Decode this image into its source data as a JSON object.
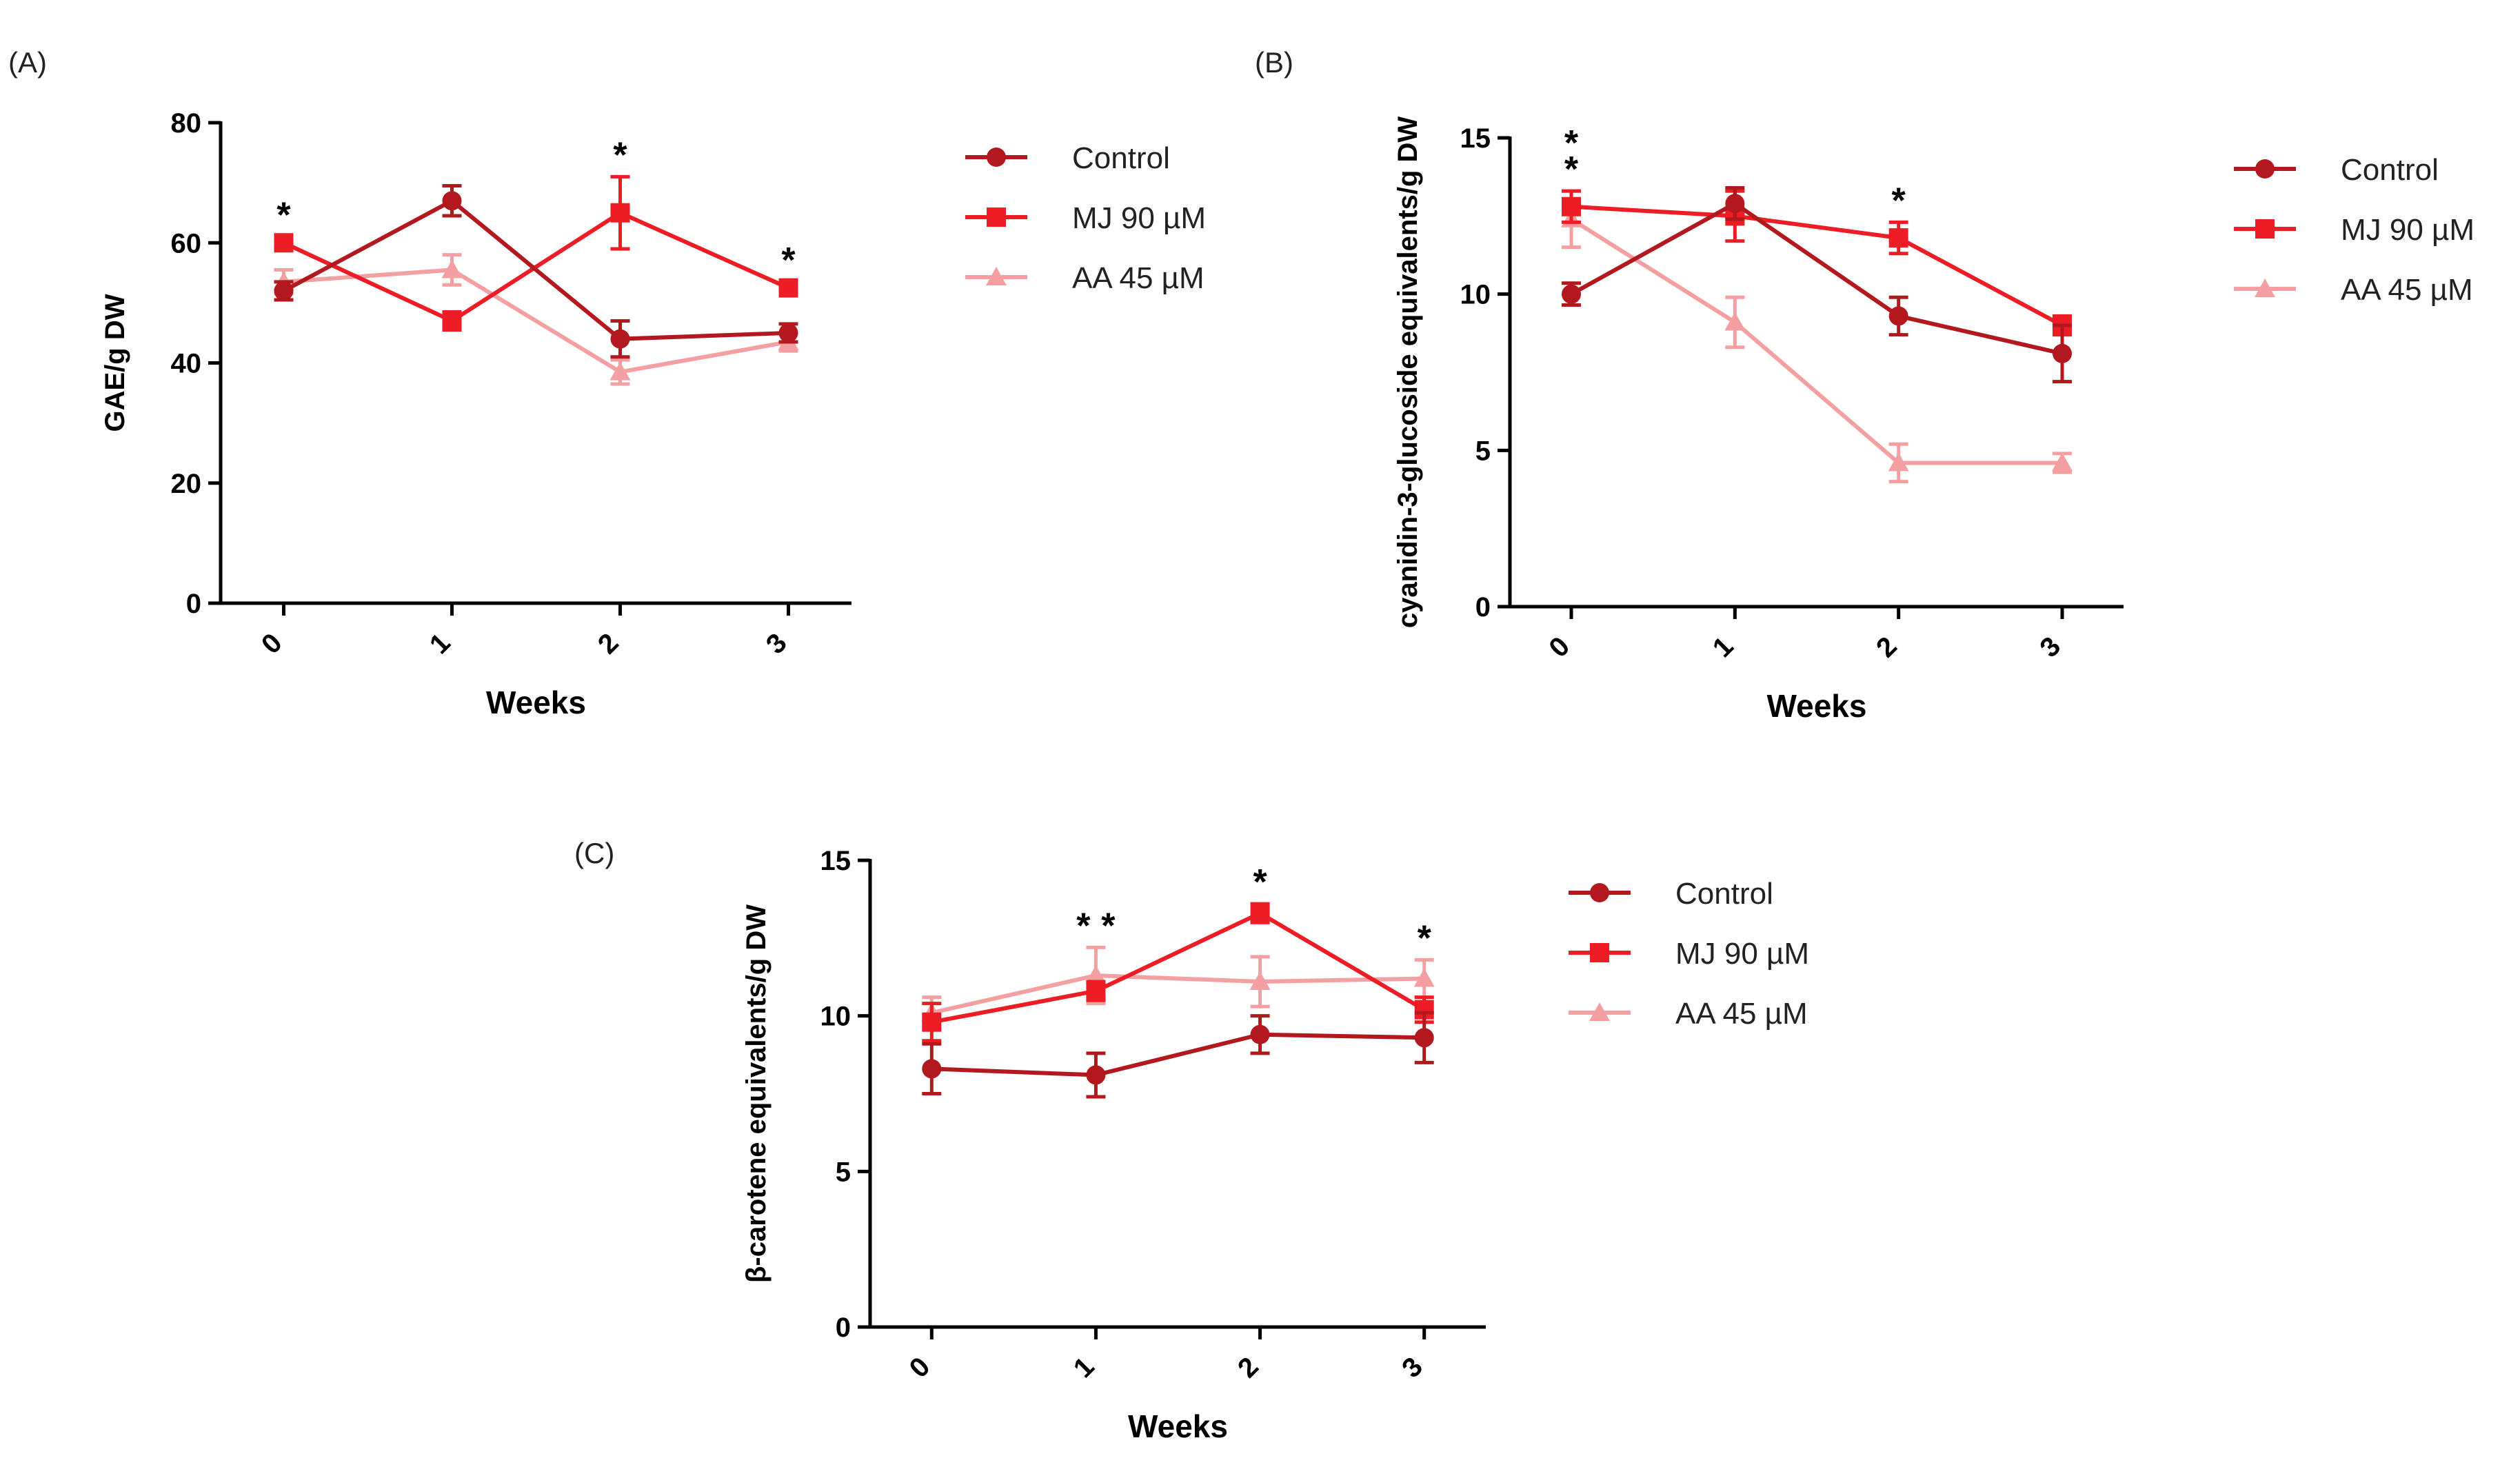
{
  "series_colors": {
    "Control": "#b3181f",
    "MJ 90 µM": "#ee1c24",
    "AA 45 µM": "#f4a0a3"
  },
  "chart_data": [
    {
      "panel_label": "(A)",
      "type": "line",
      "xlabel": "Weeks",
      "ylabel": "GAE/g DW",
      "x": [
        0,
        1,
        2,
        3
      ],
      "x_tick_labels": [
        "0",
        "1",
        "2",
        "3"
      ],
      "ylim": [
        0,
        80
      ],
      "y_ticks": [
        0,
        20,
        40,
        60,
        80
      ],
      "grid": false,
      "legend_placement": "right",
      "series": [
        {
          "name": "Control",
          "marker": "circle",
          "values": [
            52,
            67,
            44,
            45
          ],
          "errors": [
            1.5,
            2.5,
            3,
            1.5
          ]
        },
        {
          "name": "MJ 90 µM",
          "marker": "square",
          "values": [
            60,
            47,
            65,
            52.5
          ],
          "errors": [
            1,
            1.5,
            6,
            1
          ]
        },
        {
          "name": "AA 45 µM",
          "marker": "triangle",
          "values": [
            53.5,
            55.5,
            38.5,
            43.5
          ],
          "errors": [
            2,
            2.5,
            2,
            1.5
          ]
        }
      ],
      "annotations": [
        {
          "x": 0,
          "text": "*"
        },
        {
          "x": 2,
          "text": "*"
        },
        {
          "x": 3,
          "text": "*"
        }
      ]
    },
    {
      "panel_label": "(B)",
      "type": "line",
      "xlabel": "Weeks",
      "ylabel": "cyanidin-3-glucoside equivalents/g DW",
      "x": [
        0,
        1,
        2,
        3
      ],
      "x_tick_labels": [
        "0",
        "1",
        "2",
        "3"
      ],
      "ylim": [
        0,
        15
      ],
      "y_ticks": [
        0,
        5,
        10,
        15
      ],
      "grid": false,
      "legend_placement": "right",
      "series": [
        {
          "name": "Control",
          "marker": "circle",
          "values": [
            10,
            12.9,
            9.3,
            8.1
          ],
          "errors": [
            0.35,
            0.5,
            0.6,
            0.9
          ]
        },
        {
          "name": "MJ 90 µM",
          "marker": "square",
          "values": [
            12.8,
            12.5,
            11.8,
            9
          ],
          "errors": [
            0.5,
            0.8,
            0.5,
            0.3
          ]
        },
        {
          "name": "AA 45 µM",
          "marker": "triangle",
          "values": [
            12.4,
            9.1,
            4.6,
            4.6
          ],
          "errors": [
            0.9,
            0.8,
            0.6,
            0.3
          ]
        }
      ],
      "annotations": [
        {
          "x": 0,
          "text": "*"
        },
        {
          "x": 0,
          "text": "*"
        },
        {
          "x": 2,
          "text": "*"
        }
      ]
    },
    {
      "panel_label": "(C)",
      "type": "line",
      "xlabel": "Weeks",
      "ylabel": "β-carotene equivalents/g DW",
      "x": [
        0,
        1,
        2,
        3
      ],
      "x_tick_labels": [
        "0",
        "1",
        "2",
        "3"
      ],
      "ylim": [
        0,
        15
      ],
      "y_ticks": [
        0,
        5,
        10,
        15
      ],
      "grid": false,
      "legend_placement": "right",
      "series": [
        {
          "name": "Control",
          "marker": "circle",
          "values": [
            8.3,
            8.1,
            9.4,
            9.3
          ],
          "errors": [
            0.8,
            0.7,
            0.6,
            0.8
          ]
        },
        {
          "name": "MJ 90 µM",
          "marker": "square",
          "values": [
            9.8,
            10.8,
            13.3,
            10.2
          ],
          "errors": [
            0.6,
            0.3,
            0.3,
            0.4
          ]
        },
        {
          "name": "AA 45 µM",
          "marker": "triangle",
          "values": [
            10.1,
            11.3,
            11.1,
            11.2
          ],
          "errors": [
            0.5,
            0.9,
            0.8,
            0.6
          ]
        }
      ],
      "annotations": [
        {
          "x": 1,
          "text": "*"
        },
        {
          "x": 1,
          "text": "*"
        },
        {
          "x": 2,
          "text": "*"
        },
        {
          "x": 3,
          "text": "*"
        }
      ]
    }
  ]
}
